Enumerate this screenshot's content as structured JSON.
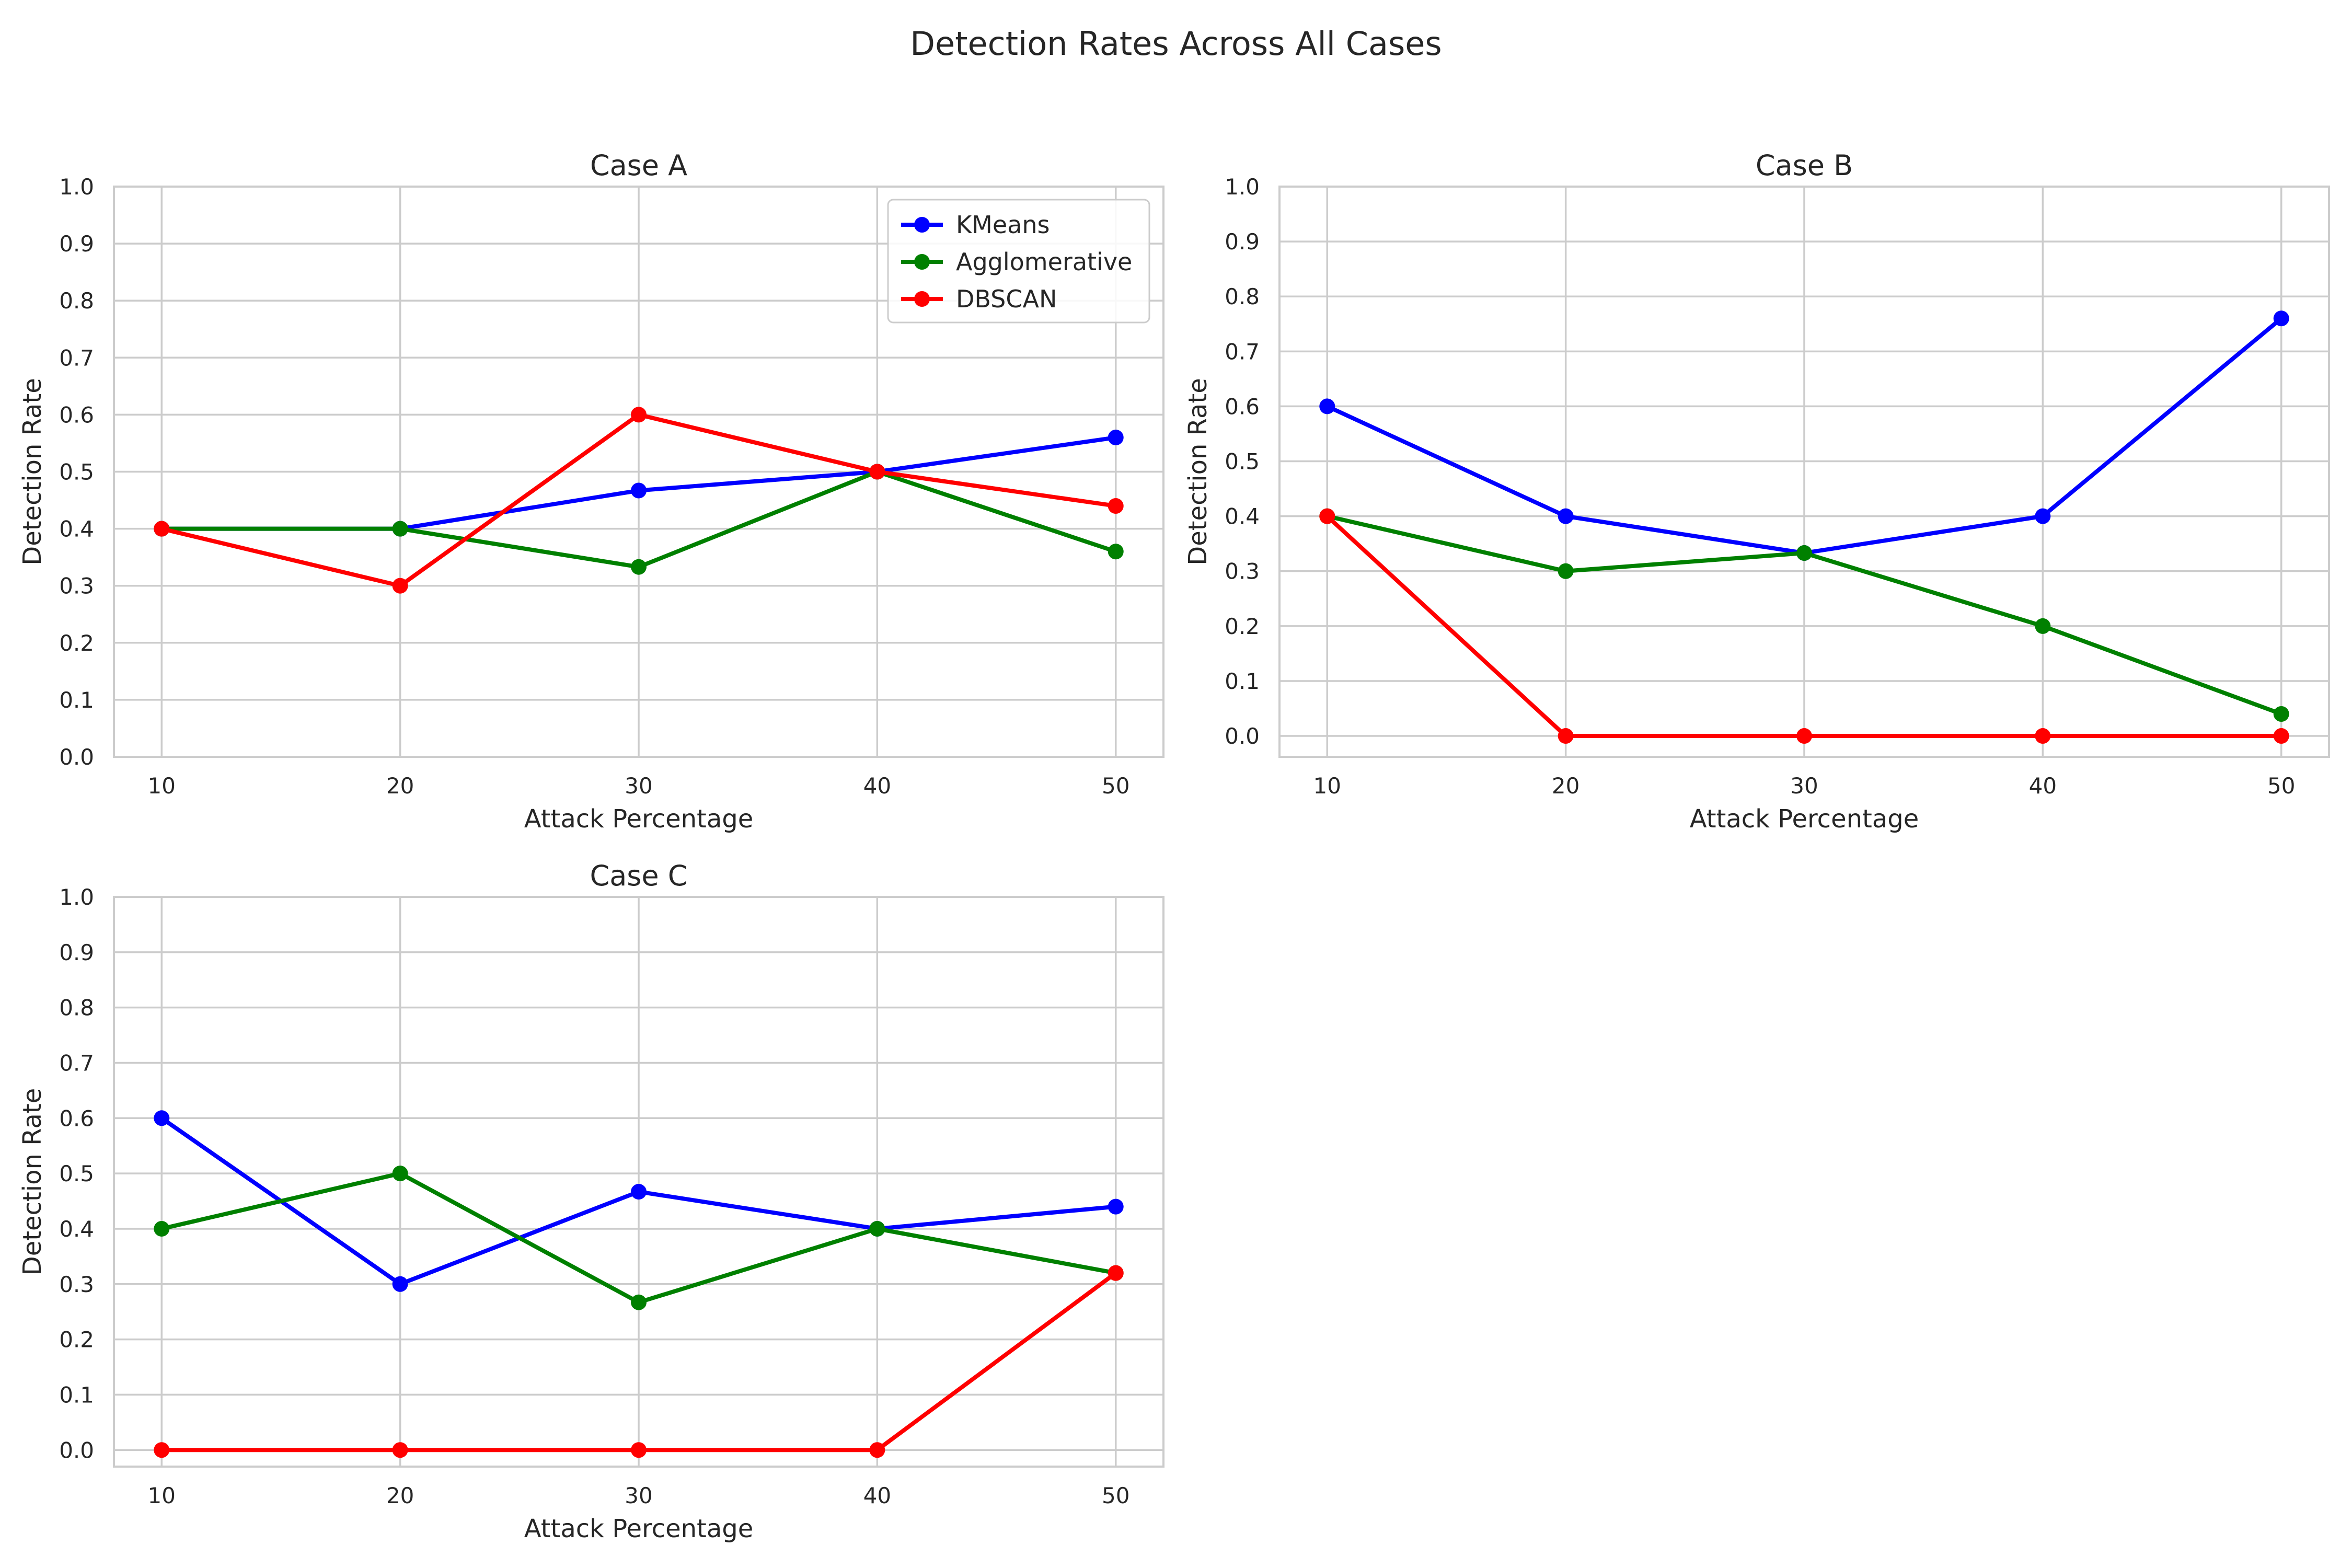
{
  "figure_title": "Detection Rates Across All Cases",
  "chart_data": [
    {
      "type": "line",
      "title": "Case A",
      "xlabel": "Attack Percentage",
      "ylabel": "Detection Rate",
      "x": [
        10,
        20,
        30,
        40,
        50
      ],
      "x_tick_labels": [
        "10",
        "20",
        "30",
        "40",
        "50"
      ],
      "y_tick_labels": [
        "0.0",
        "0.1",
        "0.2",
        "0.3",
        "0.4",
        "0.5",
        "0.6",
        "0.7",
        "0.8",
        "0.9",
        "1.0"
      ],
      "ylim": [
        0,
        1.0
      ],
      "xlim": [
        8,
        52
      ],
      "grid": true,
      "legend": "top-right",
      "series": [
        {
          "name": "KMeans",
          "color": "#0000ff",
          "values": [
            0.4,
            0.4,
            0.467,
            0.5,
            0.56
          ]
        },
        {
          "name": "Agglomerative",
          "color": "#008000",
          "values": [
            0.4,
            0.4,
            0.333,
            0.5,
            0.36
          ]
        },
        {
          "name": "DBSCAN",
          "color": "#ff0000",
          "values": [
            0.4,
            0.3,
            0.6,
            0.5,
            0.44
          ]
        }
      ]
    },
    {
      "type": "line",
      "title": "Case B",
      "xlabel": "Attack Percentage",
      "ylabel": "Detection Rate",
      "x": [
        10,
        20,
        30,
        40,
        50
      ],
      "x_tick_labels": [
        "10",
        "20",
        "30",
        "40",
        "50"
      ],
      "y_tick_labels": [
        "0.0",
        "0.1",
        "0.2",
        "0.3",
        "0.4",
        "0.5",
        "0.6",
        "0.7",
        "0.8",
        "0.9",
        "1.0"
      ],
      "ylim": [
        -0.038,
        1.0
      ],
      "xlim": [
        8,
        52
      ],
      "grid": true,
      "legend": "none",
      "series": [
        {
          "name": "KMeans",
          "color": "#0000ff",
          "values": [
            0.6,
            0.4,
            0.333,
            0.4,
            0.76
          ]
        },
        {
          "name": "Agglomerative",
          "color": "#008000",
          "values": [
            0.4,
            0.3,
            0.333,
            0.2,
            0.04
          ]
        },
        {
          "name": "DBSCAN",
          "color": "#ff0000",
          "values": [
            0.4,
            0.0,
            0.0,
            0.0,
            0.0
          ]
        }
      ]
    },
    {
      "type": "line",
      "title": "Case C",
      "xlabel": "Attack Percentage",
      "ylabel": "Detection Rate",
      "x": [
        10,
        20,
        30,
        40,
        50
      ],
      "x_tick_labels": [
        "10",
        "20",
        "30",
        "40",
        "50"
      ],
      "y_tick_labels": [
        "0.0",
        "0.1",
        "0.2",
        "0.3",
        "0.4",
        "0.5",
        "0.6",
        "0.7",
        "0.8",
        "0.9",
        "1.0"
      ],
      "ylim": [
        -0.03,
        1.0
      ],
      "xlim": [
        8,
        52
      ],
      "grid": true,
      "legend": "none",
      "series": [
        {
          "name": "KMeans",
          "color": "#0000ff",
          "values": [
            0.6,
            0.3,
            0.467,
            0.4,
            0.44
          ]
        },
        {
          "name": "Agglomerative",
          "color": "#008000",
          "values": [
            0.4,
            0.5,
            0.267,
            0.4,
            0.32
          ]
        },
        {
          "name": "DBSCAN",
          "color": "#ff0000",
          "values": [
            0.0,
            0.0,
            0.0,
            0.0,
            0.32
          ]
        }
      ]
    }
  ]
}
